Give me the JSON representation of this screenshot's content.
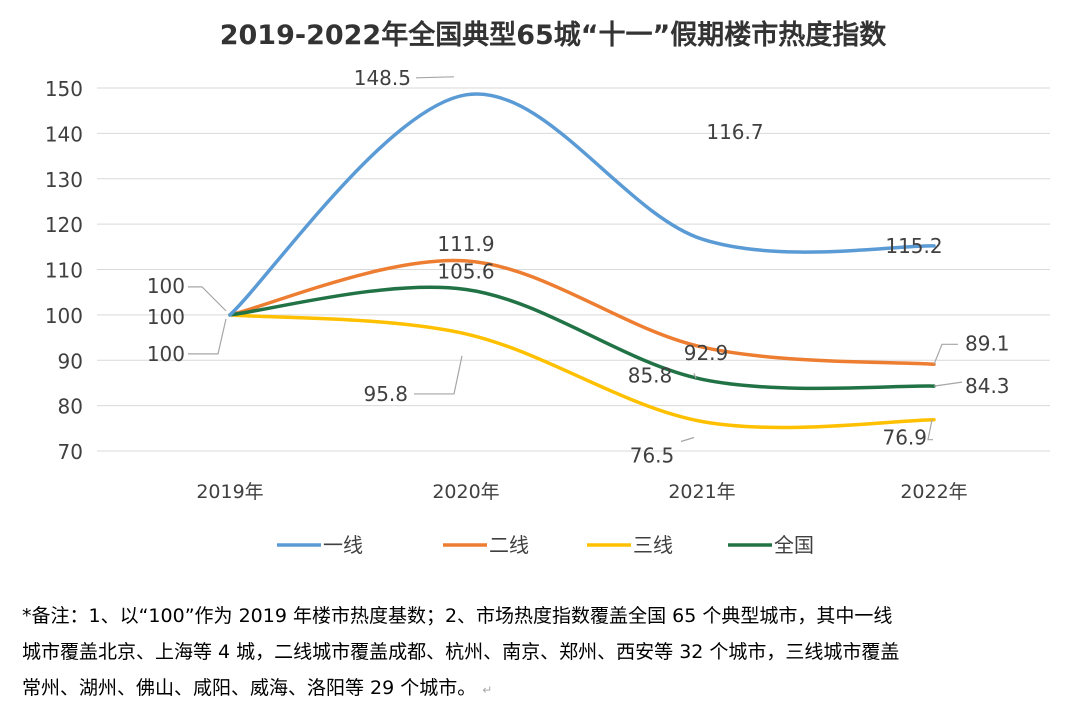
{
  "chart_data": {
    "type": "line",
    "title": "2019-2022年全国典型65城“十一”假期楼市热度指数",
    "categories": [
      "2019年",
      "2020年",
      "2021年",
      "2022年"
    ],
    "ylim": [
      70,
      150
    ],
    "yticks": [
      70,
      80,
      90,
      100,
      110,
      120,
      130,
      140,
      150
    ],
    "grid": true,
    "legend_position": "bottom",
    "series": [
      {
        "name": "一线",
        "color": "#5b9bd5",
        "values": [
          100,
          148.5,
          116.7,
          115.2
        ],
        "labels": [
          "100",
          "148.5",
          "116.7",
          "115.2"
        ]
      },
      {
        "name": "二线",
        "color": "#ed7d31",
        "values": [
          100,
          111.9,
          92.9,
          89.1
        ],
        "labels": [
          "100",
          "111.9",
          "92.9",
          "89.1"
        ]
      },
      {
        "name": "三线",
        "color": "#ffc000",
        "values": [
          100,
          95.8,
          76.5,
          76.9
        ],
        "labels": [
          "100",
          "95.8",
          "76.5",
          "76.9"
        ]
      },
      {
        "name": "全国",
        "color": "#217346",
        "values": [
          100,
          105.6,
          85.8,
          84.3
        ],
        "labels": [
          "",
          "105.6",
          "85.8",
          "84.3"
        ]
      }
    ]
  },
  "note": {
    "lines": [
      "*备注：1、以“100”作为 2019 年楼市热度基数；2、市场热度指数覆盖全国 65 个典型城市，其中一线",
      "城市覆盖北京、上海等 4 城，二线城市覆盖成都、杭州、南京、郑州、西安等 32 个城市，三线城市覆盖",
      "常州、湖州、佛山、咸阳、威海、洛阳等 29 个城市。"
    ],
    "return_mark": "↵"
  }
}
